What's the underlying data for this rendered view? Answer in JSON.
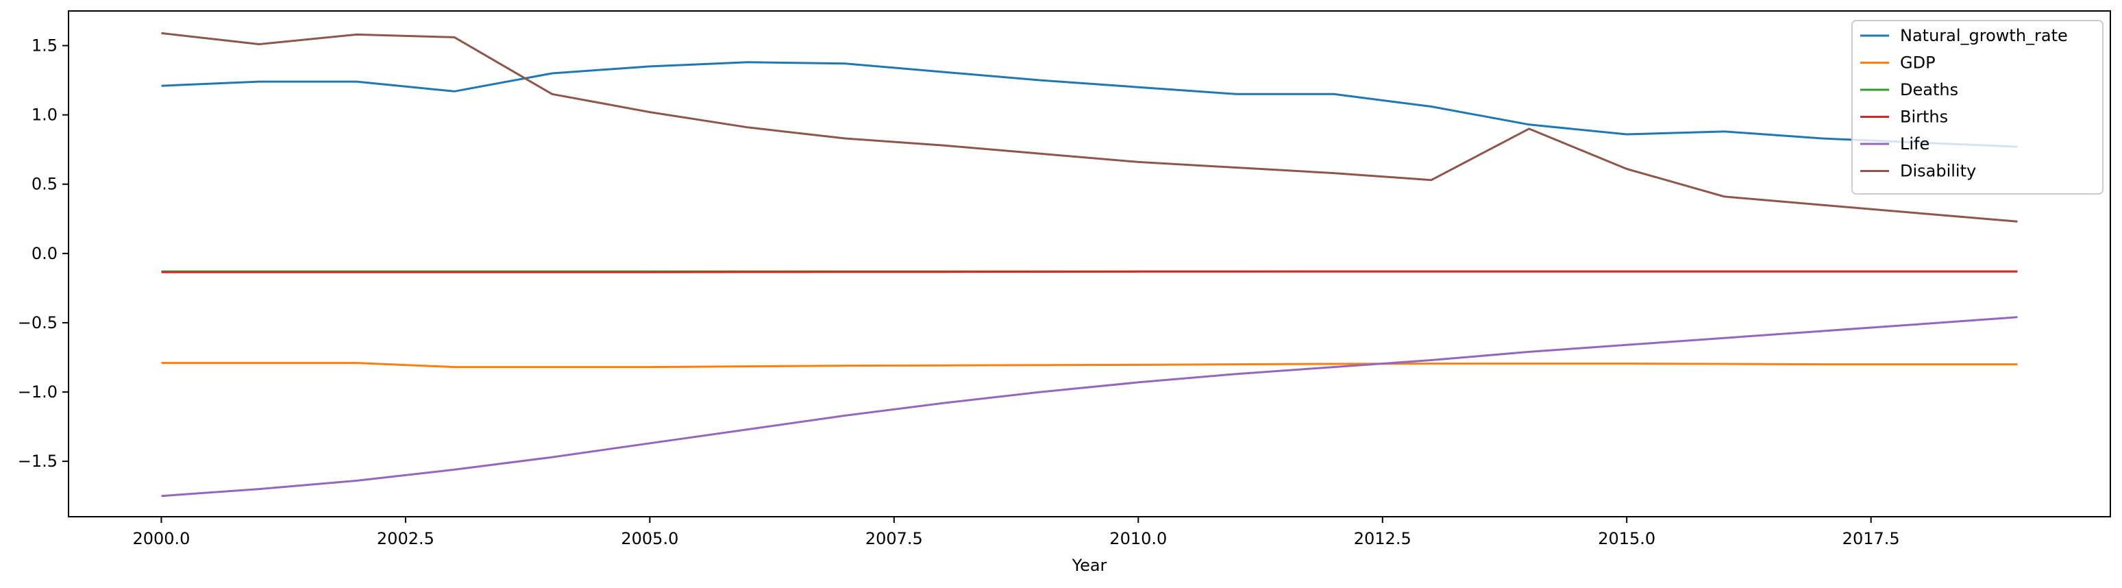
{
  "chart_data": {
    "type": "line",
    "title": "",
    "xlabel": "Year",
    "ylabel": "",
    "xlim": [
      1999.05,
      2019.95
    ],
    "ylim": [
      -1.9,
      1.75
    ],
    "xticks": [
      2000.0,
      2002.5,
      2005.0,
      2007.5,
      2010.0,
      2012.5,
      2015.0,
      2017.5
    ],
    "xtick_labels": [
      "2000.0",
      "2002.5",
      "2005.0",
      "2007.5",
      "2010.0",
      "2012.5",
      "2015.0",
      "2017.5"
    ],
    "yticks": [
      1.5,
      1.0,
      0.5,
      0.0,
      -0.5,
      -1.0,
      -1.5
    ],
    "ytick_labels": [
      "1.5",
      "1.0",
      "0.5",
      "0.0",
      "−0.5",
      "−1.0",
      "−1.5"
    ],
    "grid": false,
    "legend_position": "top-right",
    "x": [
      2000,
      2001,
      2002,
      2003,
      2004,
      2005,
      2006,
      2007,
      2008,
      2009,
      2010,
      2011,
      2012,
      2013,
      2014,
      2015,
      2016,
      2017,
      2018,
      2019
    ],
    "series": [
      {
        "name": "Natural_growth_rate",
        "color": "#1f77b4",
        "values": [
          1.21,
          1.24,
          1.24,
          1.17,
          1.3,
          1.35,
          1.38,
          1.37,
          1.31,
          1.25,
          1.2,
          1.15,
          1.15,
          1.06,
          0.93,
          0.86,
          0.88,
          0.83,
          0.8,
          0.77
        ]
      },
      {
        "name": "GDP",
        "color": "#ff7f0e",
        "values": [
          -0.79,
          -0.79,
          -0.79,
          -0.82,
          -0.82,
          -0.82,
          -0.815,
          -0.81,
          -0.808,
          -0.806,
          -0.804,
          -0.8,
          -0.797,
          -0.795,
          -0.795,
          -0.795,
          -0.797,
          -0.8,
          -0.8,
          -0.8
        ]
      },
      {
        "name": "Deaths",
        "color": "#2ca02c",
        "values": [
          -0.13,
          -0.13,
          -0.13,
          -0.13,
          -0.13,
          -0.13,
          -0.13,
          -0.13,
          -0.13,
          -0.13,
          -0.13,
          -0.13,
          -0.13,
          -0.13,
          -0.13,
          -0.13,
          -0.13,
          -0.13,
          -0.13,
          -0.13
        ]
      },
      {
        "name": "Births",
        "color": "#d62728",
        "values": [
          -0.135,
          -0.135,
          -0.135,
          -0.135,
          -0.135,
          -0.135,
          -0.134,
          -0.133,
          -0.133,
          -0.132,
          -0.131,
          -0.131,
          -0.13,
          -0.13,
          -0.13,
          -0.13,
          -0.13,
          -0.13,
          -0.13,
          -0.13
        ]
      },
      {
        "name": "Life",
        "color": "#9467bd",
        "values": [
          -1.75,
          -1.7,
          -1.64,
          -1.56,
          -1.47,
          -1.37,
          -1.27,
          -1.17,
          -1.08,
          -1.0,
          -0.93,
          -0.87,
          -0.82,
          -0.77,
          -0.71,
          -0.66,
          -0.61,
          -0.56,
          -0.51,
          -0.46
        ]
      },
      {
        "name": "Disability",
        "color": "#8c564b",
        "values": [
          1.59,
          1.51,
          1.58,
          1.56,
          1.15,
          1.02,
          0.91,
          0.83,
          0.78,
          0.72,
          0.66,
          0.62,
          0.58,
          0.53,
          0.9,
          0.61,
          0.41,
          0.35,
          0.29,
          0.23
        ]
      }
    ]
  }
}
